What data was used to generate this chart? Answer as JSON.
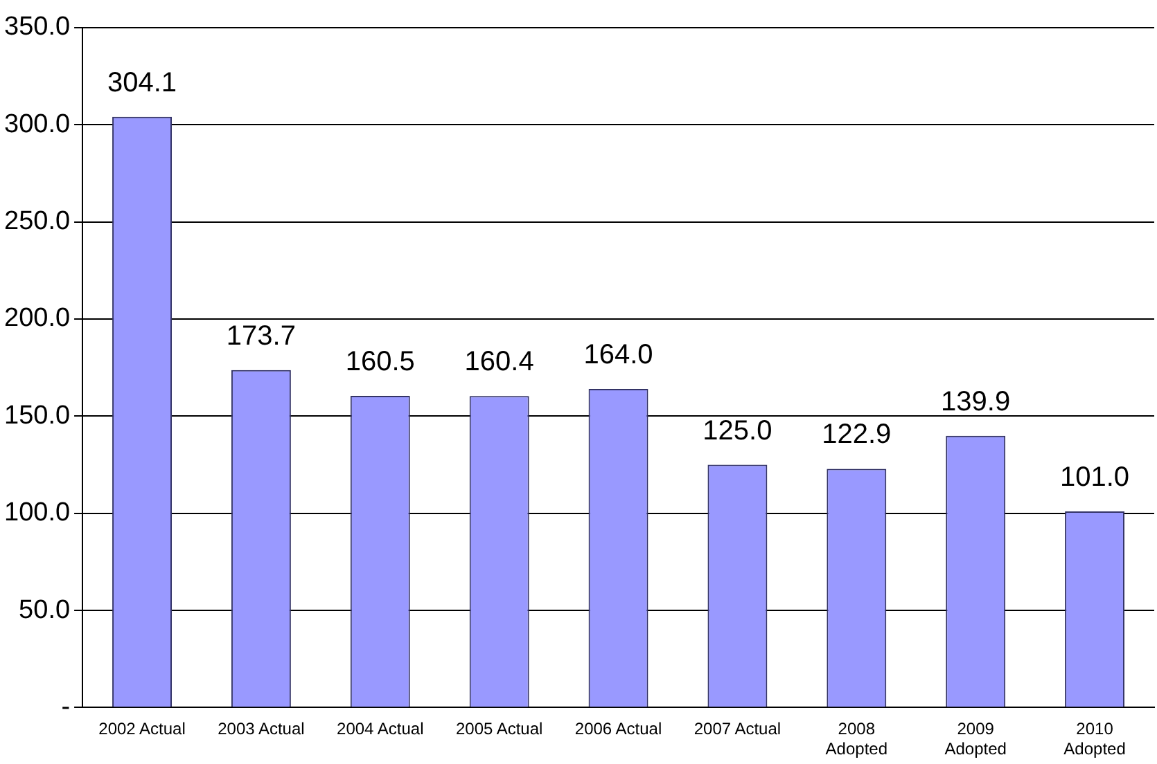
{
  "chart_data": {
    "type": "bar",
    "categories": [
      "2002 Actual",
      "2003 Actual",
      "2004 Actual",
      "2005 Actual",
      "2006 Actual",
      "2007 Actual",
      "2008\nAdopted",
      "2009\nAdopted",
      "2010\nAdopted"
    ],
    "values": [
      304.1,
      173.7,
      160.5,
      160.4,
      164.0,
      125.0,
      122.9,
      139.9,
      101.0
    ],
    "value_labels": [
      "304.1",
      "173.7",
      "160.5",
      "160.4",
      "164.0",
      "125.0",
      "122.9",
      "139.9",
      "101.0"
    ],
    "color": "#9999ff",
    "ylim": [
      0,
      350
    ],
    "yticks": [
      {
        "value": 0,
        "label": "-"
      },
      {
        "value": 50,
        "label": "50.0"
      },
      {
        "value": 100,
        "label": "100.0"
      },
      {
        "value": 150,
        "label": "150.0"
      },
      {
        "value": 200,
        "label": "200.0"
      },
      {
        "value": 250,
        "label": "250.0"
      },
      {
        "value": 300,
        "label": "300.0"
      },
      {
        "value": 350,
        "label": "350.0"
      }
    ],
    "grid": "y",
    "legend": false
  }
}
